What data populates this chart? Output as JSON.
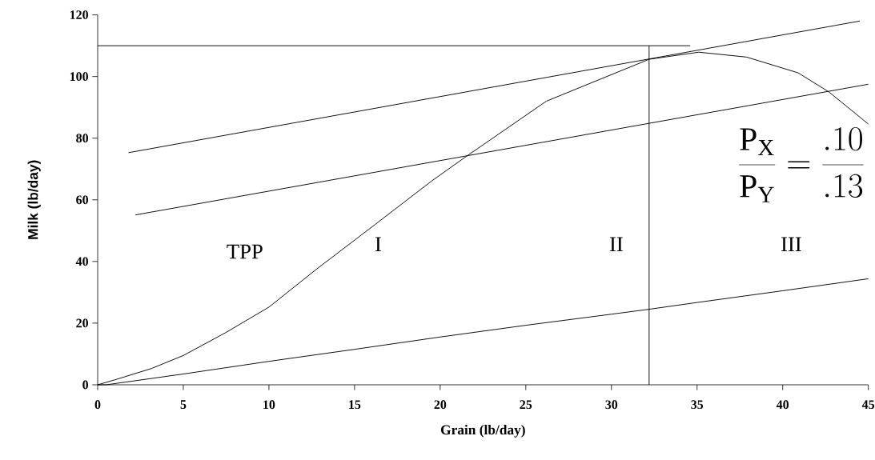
{
  "chart_data": {
    "type": "line",
    "xlabel": "Grain (lb/day)",
    "ylabel": "Milk (lb/day)",
    "xlim": [
      0,
      45
    ],
    "xticks": [
      0,
      5,
      10,
      15,
      20,
      25,
      30,
      35,
      40,
      45
    ],
    "ylim": [
      0,
      120
    ],
    "yticks": [
      0,
      20,
      40,
      60,
      80,
      100,
      120
    ],
    "series": [
      {
        "color": "#000000",
        "x": [
          0,
          1,
          3.15,
          5,
          7.5,
          10,
          12.8,
          16.2,
          19.5,
          21.5,
          26.2,
          32.2,
          35.1,
          37.9,
          40.9,
          42.7,
          45
        ],
        "values": [
          0,
          1.6,
          5.3,
          9.5,
          17,
          25.2,
          37.6,
          52,
          66.1,
          74,
          92,
          105.6,
          107.9,
          106.3,
          101.2,
          95,
          84.6
        ]
      },
      {
        "color": "#000000",
        "x": [
          0,
          0.5,
          5,
          10,
          15,
          20,
          25,
          30,
          32.2,
          35,
          40,
          45
        ],
        "values": [
          0,
          0,
          3.5,
          7.6,
          11.5,
          15.5,
          19.3,
          22.9,
          24.5,
          26.7,
          30.5,
          34.4
        ]
      },
      {
        "color": "#000000",
        "x": [
          1.8,
          44.5
        ],
        "values": [
          75.3,
          118
        ]
      },
      {
        "color": "#000000",
        "x": [
          2.2,
          45
        ],
        "values": [
          55.1,
          97.5
        ]
      },
      {
        "color": "#000000",
        "x": [
          0,
          34.6
        ],
        "values": [
          110,
          110
        ]
      },
      {
        "color": "#000000",
        "x": [
          32.2,
          32.2
        ],
        "values": [
          0,
          110
        ]
      }
    ],
    "annotations": [
      "TPP",
      "I",
      "II",
      "III",
      "\\frac{\\mathrm{P}_{\\mathrm{X}}}{\\mathrm{P}_{\\mathrm{Y}}} = \\frac{.10}{.13}"
    ]
  }
}
